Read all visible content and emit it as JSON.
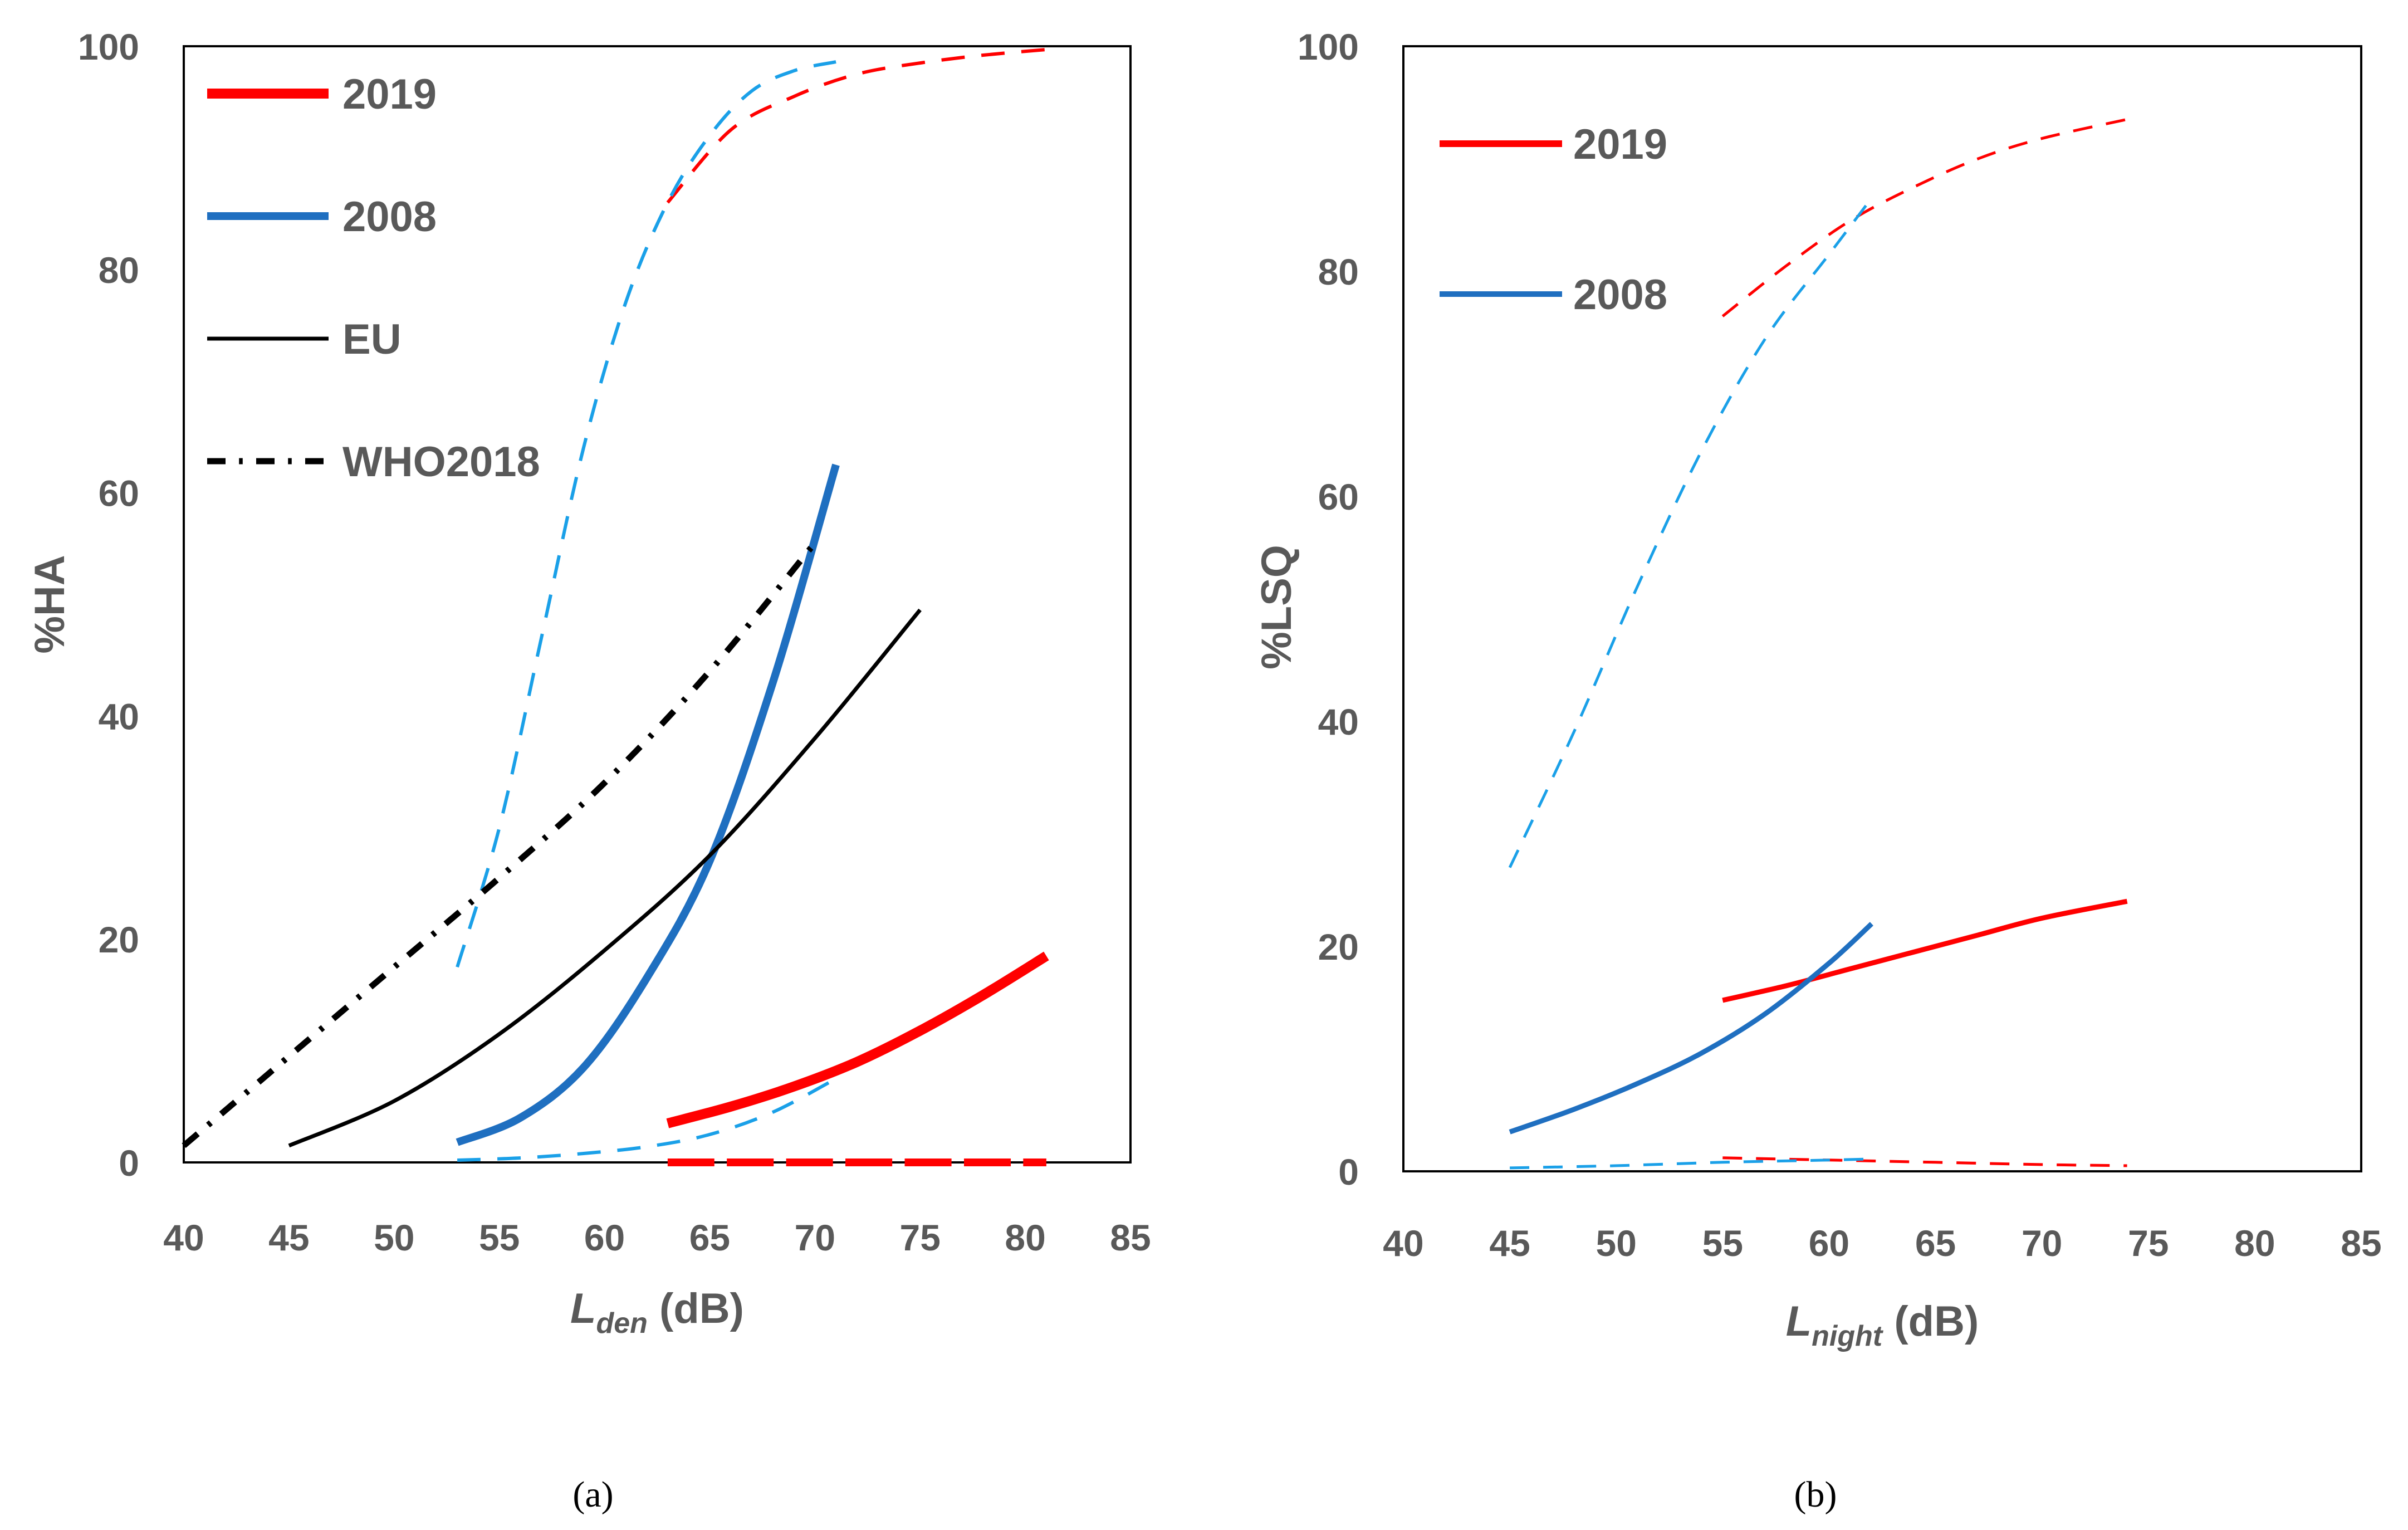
{
  "chart_data": [
    {
      "type": "line",
      "id": "a",
      "caption": "(a)",
      "ylabel": "%HA",
      "xlabel_main": "L",
      "xlabel_sub": "den",
      "xlabel_unit": " (dB)",
      "xlim": [
        40,
        85
      ],
      "ylim": [
        0,
        100
      ],
      "xticks": [
        "40",
        "45",
        "50",
        "55",
        "60",
        "65",
        "70",
        "75",
        "80",
        "85"
      ],
      "yticks": [
        "0",
        "20",
        "40",
        "60",
        "80",
        "100"
      ],
      "legend": [
        {
          "label": "2019",
          "color": "#ff0000",
          "style": "solid",
          "width": 18
        },
        {
          "label": "2008",
          "color": "#1f6fc0",
          "style": "solid",
          "width": 14
        },
        {
          "label": "EU",
          "color": "#000000",
          "style": "solid",
          "width": 7
        },
        {
          "label": "WHO2018",
          "color": "#000000",
          "style": "dashdot",
          "width": 11
        }
      ],
      "series": [
        {
          "name": "2019",
          "color": "#ff0000",
          "style": "solid",
          "width": 18,
          "x": [
            63,
            66,
            69,
            72,
            75,
            78,
            81
          ],
          "y": [
            3.5,
            5.0,
            6.8,
            9.0,
            11.8,
            15.0,
            18.5
          ]
        },
        {
          "name": "2019 upper bound",
          "color": "#ff0000",
          "style": "dashed",
          "width": 6,
          "x": [
            63,
            66,
            69,
            72,
            75,
            78,
            81
          ],
          "y": [
            86,
            92.5,
            95.5,
            97.5,
            98.5,
            99.2,
            99.7
          ]
        },
        {
          "name": "2019 lower bound",
          "color": "#ff0000",
          "style": "bigdash",
          "width": 14,
          "x": [
            63,
            81
          ],
          "y": [
            0,
            0
          ]
        },
        {
          "name": "2008",
          "color": "#1f6fc0",
          "style": "solid",
          "width": 14,
          "x": [
            53,
            56,
            59,
            62,
            65,
            68,
            71
          ],
          "y": [
            1.8,
            4.0,
            8.5,
            16.5,
            27.0,
            43.0,
            62.5
          ]
        },
        {
          "name": "2008 upper bound",
          "color": "#1aa0e8",
          "style": "dashed",
          "width": 6,
          "x": [
            53,
            55,
            57,
            59,
            61,
            63,
            65,
            67,
            69,
            71
          ],
          "y": [
            17.5,
            30,
            47,
            64,
            77,
            86,
            92,
            96,
            97.8,
            98.6
          ]
        },
        {
          "name": "2008 lower bound",
          "color": "#1aa0e8",
          "style": "dashed",
          "width": 6,
          "x": [
            53,
            56,
            59,
            62,
            65,
            68,
            71
          ],
          "y": [
            0.2,
            0.4,
            0.8,
            1.4,
            2.5,
            4.5,
            7.5
          ]
        },
        {
          "name": "EU",
          "color": "#000000",
          "style": "solid",
          "width": 7,
          "x": [
            45,
            50,
            55,
            60,
            65,
            70,
            75
          ],
          "y": [
            1.5,
            5.5,
            11.5,
            19.0,
            27.5,
            38.0,
            49.5
          ]
        },
        {
          "name": "WHO2018",
          "color": "#000000",
          "style": "dashdot",
          "width": 11,
          "x": [
            40,
            45,
            50,
            55,
            60,
            65,
            70
          ],
          "y": [
            1.5,
            9.5,
            17.5,
            25.5,
            34.0,
            44.0,
            55.5
          ]
        }
      ]
    },
    {
      "type": "line",
      "id": "b",
      "caption": "(b)",
      "ylabel": "%LSQ",
      "xlabel_main": "L",
      "xlabel_sub": "night",
      "xlabel_unit": " (dB)",
      "xlim": [
        40,
        85
      ],
      "ylim": [
        0,
        100
      ],
      "xticks": [
        "40",
        "45",
        "50",
        "55",
        "60",
        "65",
        "70",
        "75",
        "80",
        "85"
      ],
      "yticks": [
        "0",
        "20",
        "40",
        "60",
        "80",
        "100"
      ],
      "legend": [
        {
          "label": "2019",
          "color": "#ff0000",
          "style": "solid",
          "width": 12
        },
        {
          "label": "2008",
          "color": "#1f6fc0",
          "style": "solid",
          "width": 10
        }
      ],
      "series": [
        {
          "name": "2019",
          "color": "#ff0000",
          "style": "solid",
          "width": 9,
          "x": [
            55,
            58,
            61,
            64,
            67,
            70,
            74
          ],
          "y": [
            15.2,
            16.5,
            18.0,
            19.5,
            21.0,
            22.5,
            24.0
          ]
        },
        {
          "name": "2019 upper bound",
          "color": "#ff0000",
          "style": "dashed",
          "width": 5,
          "x": [
            55,
            58,
            61,
            64,
            67,
            70,
            74
          ],
          "y": [
            76,
            80.5,
            84.5,
            87.5,
            90,
            91.8,
            93.5
          ]
        },
        {
          "name": "2019 lower bound",
          "color": "#ff0000",
          "style": "dashed",
          "width": 5,
          "x": [
            55,
            60,
            65,
            70,
            74
          ],
          "y": [
            1.2,
            1.0,
            0.8,
            0.6,
            0.5
          ]
        },
        {
          "name": "2008",
          "color": "#1f6fc0",
          "style": "solid",
          "width": 9,
          "x": [
            45,
            48,
            51,
            54,
            57,
            60,
            62
          ],
          "y": [
            3.5,
            5.5,
            7.8,
            10.5,
            14.0,
            18.5,
            22.0
          ]
        },
        {
          "name": "2008 upper bound",
          "color": "#1aa0e8",
          "style": "dashed",
          "width": 5,
          "x": [
            45,
            48,
            51,
            54,
            57,
            60,
            62
          ],
          "y": [
            27,
            39,
            52,
            64,
            74,
            81.5,
            86.5
          ]
        },
        {
          "name": "2008 lower bound",
          "color": "#1aa0e8",
          "style": "dashed",
          "width": 5,
          "x": [
            45,
            50,
            55,
            60,
            62
          ],
          "y": [
            0.3,
            0.5,
            0.8,
            1.0,
            1.1
          ]
        }
      ]
    }
  ]
}
